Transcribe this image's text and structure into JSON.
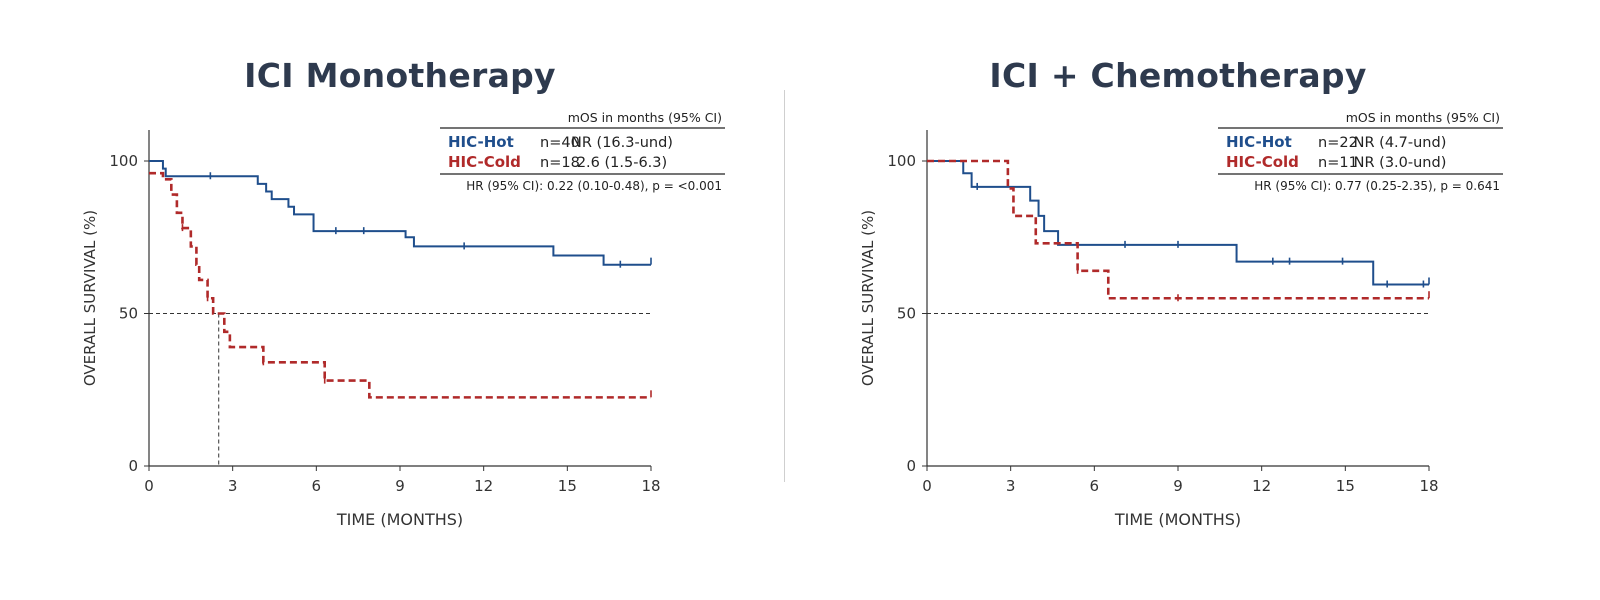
{
  "colors": {
    "hot": "#1f4e8c",
    "cold": "#b02a2a",
    "text": "#333333",
    "title": "#2e3a4e"
  },
  "chart_data": [
    {
      "type": "line",
      "title": "ICI Monotherapy",
      "xlabel": "TIME (MONTHS)",
      "ylabel": "OVERALL SURVIVAL (%)",
      "xlim": [
        0,
        18
      ],
      "ylim": [
        0,
        100
      ],
      "xticks": [
        0,
        3,
        6,
        9,
        12,
        15,
        18
      ],
      "yticks": [
        0,
        50,
        100
      ],
      "reference_line_y": 50,
      "median_drop_x": 2.5,
      "table": {
        "header": "mOS in months (95% CI)",
        "rows": [
          {
            "group": "HIC-Hot",
            "n": "n=40",
            "mos": "NR (16.3-und)"
          },
          {
            "group": "HIC-Cold",
            "n": "n=18",
            "mos": "2.6 (1.5-6.3)"
          }
        ],
        "hr": "HR (95% CI):  0.22 (0.10-0.48), p = <0.001"
      },
      "series": [
        {
          "name": "HIC-Hot",
          "style": "solid",
          "steps": [
            [
              0,
              100
            ],
            [
              0.5,
              97.5
            ],
            [
              0.6,
              95
            ],
            [
              3.9,
              92.5
            ],
            [
              4.2,
              90
            ],
            [
              4.4,
              87.5
            ],
            [
              5.0,
              85
            ],
            [
              5.2,
              82.5
            ],
            [
              5.9,
              77
            ],
            [
              9.2,
              75
            ],
            [
              9.5,
              72
            ],
            [
              14.5,
              69
            ],
            [
              16.3,
              66
            ],
            [
              18,
              66
            ]
          ],
          "censored": [
            [
              2.2,
              95
            ],
            [
              6.7,
              77
            ],
            [
              7.7,
              77
            ],
            [
              11.3,
              72
            ],
            [
              16.9,
              66
            ],
            [
              18,
              67
            ]
          ]
        },
        {
          "name": "HIC-Cold",
          "style": "dashed",
          "steps": [
            [
              0,
              96
            ],
            [
              0.5,
              94
            ],
            [
              0.8,
              89
            ],
            [
              1.0,
              83
            ],
            [
              1.2,
              78
            ],
            [
              1.5,
              72
            ],
            [
              1.7,
              66
            ],
            [
              1.8,
              61
            ],
            [
              2.1,
              55
            ],
            [
              2.3,
              50
            ],
            [
              2.7,
              44
            ],
            [
              2.9,
              39
            ],
            [
              4.1,
              34
            ],
            [
              6.3,
              28
            ],
            [
              7.9,
              22.5
            ],
            [
              18,
              22.5
            ]
          ],
          "censored": [
            [
              1.2,
              78
            ],
            [
              2.1,
              55
            ],
            [
              4.1,
              34
            ],
            [
              6.3,
              28
            ],
            [
              18,
              23.5
            ]
          ]
        }
      ]
    },
    {
      "type": "line",
      "title": "ICI + Chemotherapy",
      "xlabel": "TIME (MONTHS)",
      "ylabel": "OVERALL SURVIVAL (%)",
      "xlim": [
        0,
        18
      ],
      "ylim": [
        0,
        100
      ],
      "xticks": [
        0,
        3,
        6,
        9,
        12,
        15,
        18
      ],
      "yticks": [
        0,
        50,
        100
      ],
      "reference_line_y": 50,
      "table": {
        "header": "mOS in months (95% CI)",
        "rows": [
          {
            "group": "HIC-Hot",
            "n": "n=22",
            "mos": "NR (4.7-und)"
          },
          {
            "group": "HIC-Cold",
            "n": "n=11",
            "mos": "NR (3.0-und)"
          }
        ],
        "hr": "HR (95% CI):  0.77 (0.25-2.35), p = 0.641"
      },
      "series": [
        {
          "name": "HIC-Hot",
          "style": "solid",
          "steps": [
            [
              0,
              100
            ],
            [
              1.3,
              96
            ],
            [
              1.6,
              91.5
            ],
            [
              3.7,
              87
            ],
            [
              4.0,
              82
            ],
            [
              4.2,
              77
            ],
            [
              4.7,
              72.5
            ],
            [
              11.1,
              67
            ],
            [
              16.0,
              59.5
            ],
            [
              18,
              59.5
            ]
          ],
          "censored": [
            [
              1.8,
              91.5
            ],
            [
              7.1,
              72.5
            ],
            [
              9.0,
              72.5
            ],
            [
              12.4,
              67
            ],
            [
              13.0,
              67
            ],
            [
              14.9,
              67
            ],
            [
              16.5,
              59.5
            ],
            [
              17.8,
              59.5
            ],
            [
              18,
              60.5
            ]
          ]
        },
        {
          "name": "HIC-Cold",
          "style": "dashed",
          "steps": [
            [
              0,
              100
            ],
            [
              2.9,
              91
            ],
            [
              3.1,
              82
            ],
            [
              3.9,
              73
            ],
            [
              5.4,
              64
            ],
            [
              6.5,
              55
            ],
            [
              18,
              55
            ]
          ],
          "censored": [
            [
              5.4,
              64
            ],
            [
              9.0,
              55
            ],
            [
              18,
              56
            ]
          ]
        }
      ]
    }
  ]
}
